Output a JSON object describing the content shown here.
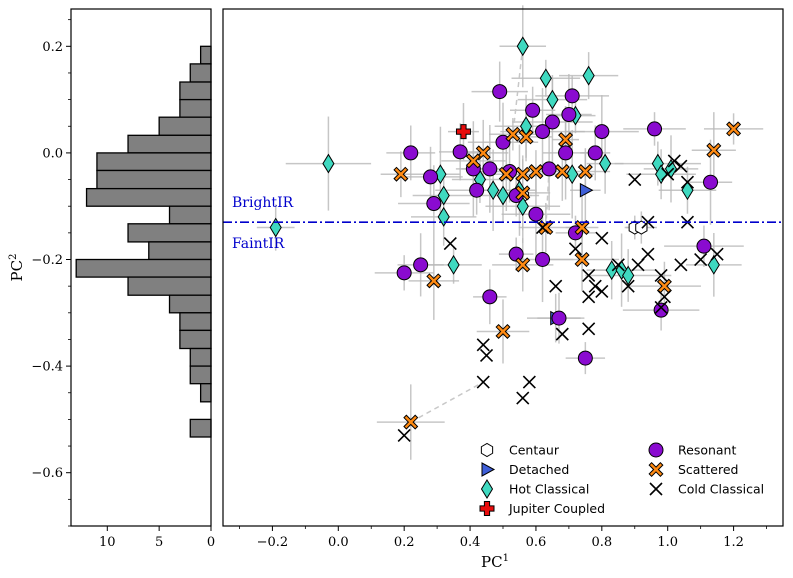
{
  "chart_data": [
    {
      "type": "histogram",
      "orientation": "horizontal",
      "xlabel": "",
      "ylabel": "PC",
      "ylabel_sup": "2",
      "xlim": [
        13.5,
        0
      ],
      "ylim": [
        -0.7,
        0.27
      ],
      "xticks": [
        10,
        5,
        0
      ],
      "xtick_labels": [
        "10",
        "5",
        "0"
      ],
      "yticks": [
        0.2,
        0.0,
        -0.2,
        -0.4,
        -0.6
      ],
      "ytick_labels": [
        "0.2",
        "0.0",
        "−0.2",
        "−0.4",
        "−0.6"
      ],
      "bin_width": 0.0333,
      "bins": [
        {
          "from": 0.167,
          "to": 0.2,
          "count": 1
        },
        {
          "from": 0.133,
          "to": 0.167,
          "count": 2
        },
        {
          "from": 0.1,
          "to": 0.133,
          "count": 3
        },
        {
          "from": 0.067,
          "to": 0.1,
          "count": 3
        },
        {
          "from": 0.033,
          "to": 0.067,
          "count": 5
        },
        {
          "from": 0.0,
          "to": 0.033,
          "count": 8
        },
        {
          "from": -0.033,
          "to": 0.0,
          "count": 11
        },
        {
          "from": -0.067,
          "to": -0.033,
          "count": 11
        },
        {
          "from": -0.1,
          "to": -0.067,
          "count": 12
        },
        {
          "from": -0.133,
          "to": -0.1,
          "count": 4
        },
        {
          "from": -0.167,
          "to": -0.133,
          "count": 8
        },
        {
          "from": -0.2,
          "to": -0.167,
          "count": 6
        },
        {
          "from": -0.233,
          "to": -0.2,
          "count": 13
        },
        {
          "from": -0.267,
          "to": -0.233,
          "count": 8
        },
        {
          "from": -0.3,
          "to": -0.267,
          "count": 4
        },
        {
          "from": -0.333,
          "to": -0.3,
          "count": 3
        },
        {
          "from": -0.367,
          "to": -0.333,
          "count": 3
        },
        {
          "from": -0.4,
          "to": -0.367,
          "count": 2
        },
        {
          "from": -0.433,
          "to": -0.4,
          "count": 2
        },
        {
          "from": -0.467,
          "to": -0.433,
          "count": 1
        },
        {
          "from": -0.533,
          "to": -0.5,
          "count": 2
        }
      ]
    },
    {
      "type": "scatter",
      "xlabel": "PC",
      "xlabel_sup": "1",
      "ylabel": "",
      "xlim": [
        -0.35,
        1.35
      ],
      "ylim": [
        -0.7,
        0.27
      ],
      "xticks": [
        -0.2,
        0.0,
        0.2,
        0.4,
        0.6,
        0.8,
        1.0,
        1.2
      ],
      "xtick_labels": [
        "−0.2",
        "0.0",
        "0.2",
        "0.4",
        "0.6",
        "0.8",
        "1.0",
        "1.2"
      ],
      "threshold": {
        "y": -0.13,
        "color": "#0000cc",
        "above_label": "BrightIR",
        "below_label": "FaintIR"
      },
      "legend": {
        "placement": "lower-right",
        "entries": [
          "Centaur",
          "Detached",
          "Hot Classical",
          "Jupiter Coupled",
          "Resonant",
          "Scattered",
          "Cold Classical"
        ]
      },
      "colors": {
        "Centaur": "#ffffff",
        "Detached": "#3f5fd8",
        "Hot Classical": "#3fd9c0",
        "Jupiter Coupled": "#e80c0c",
        "Resonant": "#8a0bd0",
        "Scattered": "#ff8a12",
        "Cold Classical": "#000000"
      },
      "series": [
        {
          "name": "Centaur",
          "marker": "hexagon",
          "points": [
            [
              0.56,
              -0.08
            ],
            [
              0.9,
              -0.14
            ],
            [
              0.92,
              -0.14
            ]
          ]
        },
        {
          "name": "Detached",
          "marker": "triangle-right",
          "points": [
            [
              0.75,
              -0.07
            ],
            [
              0.66,
              -0.31
            ]
          ]
        },
        {
          "name": "Hot Classical",
          "marker": "diamond",
          "points": [
            [
              0.56,
              0.2
            ],
            [
              0.63,
              0.14
            ],
            [
              0.76,
              0.145
            ],
            [
              0.65,
              0.1
            ],
            [
              0.57,
              0.05
            ],
            [
              0.72,
              0.07
            ],
            [
              -0.03,
              -0.02
            ],
            [
              0.81,
              -0.02
            ],
            [
              0.97,
              -0.02
            ],
            [
              1.01,
              -0.03
            ],
            [
              0.98,
              -0.04
            ],
            [
              0.31,
              -0.04
            ],
            [
              0.43,
              -0.05
            ],
            [
              0.32,
              -0.08
            ],
            [
              0.47,
              -0.07
            ],
            [
              0.5,
              -0.08
            ],
            [
              0.55,
              -0.07
            ],
            [
              0.71,
              -0.04
            ],
            [
              1.06,
              -0.07
            ],
            [
              0.32,
              -0.12
            ],
            [
              0.56,
              -0.1
            ],
            [
              -0.19,
              -0.14
            ],
            [
              0.35,
              -0.21
            ],
            [
              0.83,
              -0.22
            ],
            [
              0.86,
              -0.22
            ],
            [
              0.88,
              -0.23
            ],
            [
              1.14,
              -0.21
            ]
          ]
        },
        {
          "name": "Jupiter Coupled",
          "marker": "plus",
          "points": [
            [
              0.38,
              0.04
            ]
          ]
        },
        {
          "name": "Resonant",
          "marker": "circle",
          "points": [
            [
              0.49,
              0.115
            ],
            [
              0.59,
              0.08
            ],
            [
              0.71,
              0.107
            ],
            [
              0.7,
              0.072
            ],
            [
              0.65,
              0.058
            ],
            [
              0.62,
              0.04
            ],
            [
              0.8,
              0.04
            ],
            [
              0.96,
              0.045
            ],
            [
              0.22,
              0.0
            ],
            [
              0.37,
              0.002
            ],
            [
              0.5,
              0.02
            ],
            [
              0.69,
              0.0
            ],
            [
              0.78,
              0.0
            ],
            [
              0.28,
              -0.045
            ],
            [
              0.41,
              -0.03
            ],
            [
              0.46,
              -0.03
            ],
            [
              0.52,
              -0.035
            ],
            [
              0.64,
              -0.03
            ],
            [
              0.42,
              -0.07
            ],
            [
              0.54,
              -0.08
            ],
            [
              0.29,
              -0.095
            ],
            [
              0.6,
              -0.115
            ],
            [
              1.13,
              -0.055
            ],
            [
              0.72,
              -0.15
            ],
            [
              0.54,
              -0.19
            ],
            [
              0.62,
              -0.2
            ],
            [
              1.11,
              -0.175
            ],
            [
              0.2,
              -0.225
            ],
            [
              0.25,
              -0.21
            ],
            [
              0.46,
              -0.27
            ],
            [
              0.67,
              -0.31
            ],
            [
              0.98,
              -0.295
            ],
            [
              0.75,
              -0.385
            ]
          ]
        },
        {
          "name": "Scattered",
          "marker": "x-filled",
          "points": [
            [
              1.2,
              0.045
            ],
            [
              0.53,
              0.035
            ],
            [
              0.57,
              0.03
            ],
            [
              0.69,
              0.025
            ],
            [
              0.44,
              0.0
            ],
            [
              1.14,
              0.005
            ],
            [
              0.41,
              -0.015
            ],
            [
              0.19,
              -0.04
            ],
            [
              0.51,
              -0.04
            ],
            [
              0.56,
              -0.04
            ],
            [
              0.6,
              -0.035
            ],
            [
              0.68,
              -0.035
            ],
            [
              0.75,
              -0.035
            ],
            [
              0.56,
              -0.075
            ],
            [
              0.63,
              -0.14
            ],
            [
              0.74,
              -0.14
            ],
            [
              0.56,
              -0.21
            ],
            [
              0.74,
              -0.2
            ],
            [
              0.29,
              -0.24
            ],
            [
              0.99,
              -0.25
            ],
            [
              0.5,
              -0.335
            ],
            [
              0.22,
              -0.505
            ]
          ]
        },
        {
          "name": "Cold Classical",
          "marker": "x",
          "points": [
            [
              1.02,
              -0.015
            ],
            [
              1.04,
              -0.025
            ],
            [
              1.0,
              -0.04
            ],
            [
              0.9,
              -0.05
            ],
            [
              1.06,
              -0.055
            ],
            [
              0.94,
              -0.13
            ],
            [
              1.06,
              -0.13
            ],
            [
              0.8,
              -0.16
            ],
            [
              0.34,
              -0.17
            ],
            [
              0.62,
              -0.14
            ],
            [
              0.72,
              -0.18
            ],
            [
              0.94,
              -0.19
            ],
            [
              1.15,
              -0.19
            ],
            [
              1.1,
              -0.2
            ],
            [
              1.04,
              -0.21
            ],
            [
              0.85,
              -0.21
            ],
            [
              0.91,
              -0.21
            ],
            [
              0.76,
              -0.23
            ],
            [
              0.98,
              -0.23
            ],
            [
              0.66,
              -0.25
            ],
            [
              0.78,
              -0.25
            ],
            [
              0.8,
              -0.26
            ],
            [
              0.88,
              -0.25
            ],
            [
              0.76,
              -0.27
            ],
            [
              0.99,
              -0.27
            ],
            [
              0.98,
              -0.29
            ],
            [
              0.76,
              -0.33
            ],
            [
              0.68,
              -0.34
            ],
            [
              0.44,
              -0.36
            ],
            [
              0.45,
              -0.38
            ],
            [
              0.44,
              -0.43
            ],
            [
              0.58,
              -0.43
            ],
            [
              0.56,
              -0.46
            ],
            [
              0.2,
              -0.53
            ]
          ]
        }
      ]
    }
  ]
}
